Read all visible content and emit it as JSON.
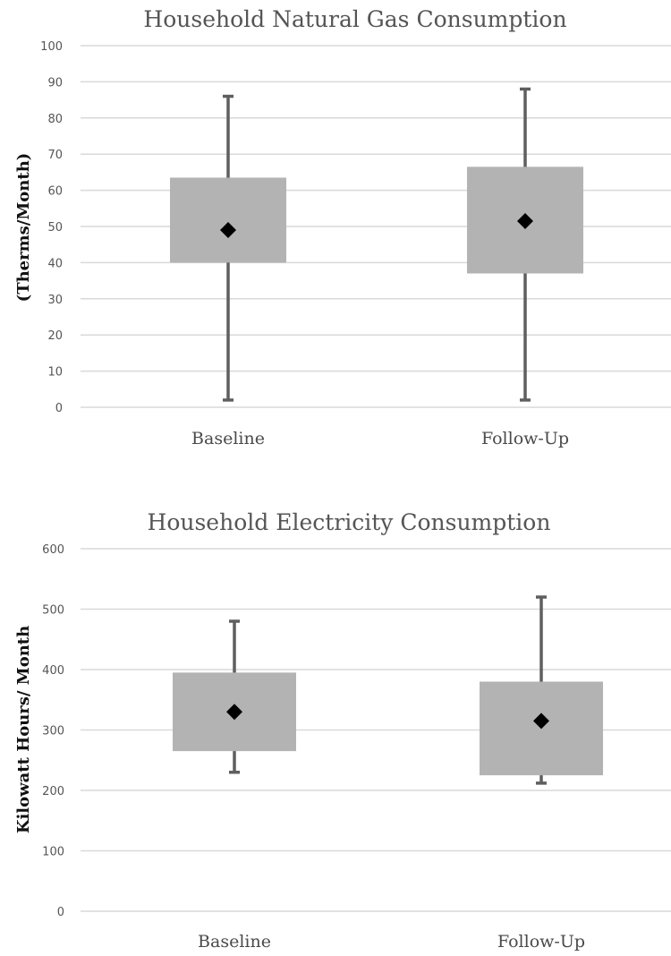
{
  "chart_data": [
    {
      "type": "box",
      "title": "Household Natural Gas Consumption",
      "ylabel": "(Therms/Month)",
      "ylim": [
        0,
        100
      ],
      "yticks": [
        0,
        10,
        20,
        30,
        40,
        50,
        60,
        70,
        80,
        90,
        100
      ],
      "grid": true,
      "categories": [
        "Baseline",
        "Follow-Up"
      ],
      "boxes": [
        {
          "category": "Baseline",
          "min": 2,
          "q1": 40,
          "q3": 63.5,
          "max": 86,
          "mean": 49
        },
        {
          "category": "Follow-Up",
          "min": 2,
          "q1": 37,
          "q3": 66.5,
          "max": 88,
          "mean": 51.5
        }
      ],
      "box_color": "#b3b3b3",
      "whisker_color": "#5f5f5f",
      "mean_marker_color": "#000000"
    },
    {
      "type": "box",
      "title": "Household Electricity Consumption",
      "ylabel": "Kilowatt Hours/ Month",
      "ylim": [
        0,
        600
      ],
      "yticks": [
        0,
        100,
        200,
        300,
        400,
        500,
        600
      ],
      "grid": true,
      "categories": [
        "Baseline",
        "Follow-Up"
      ],
      "boxes": [
        {
          "category": "Baseline",
          "min": 230,
          "q1": 265,
          "q3": 395,
          "max": 480,
          "mean": 330
        },
        {
          "category": "Follow-Up",
          "min": 212,
          "q1": 225,
          "q3": 380,
          "max": 520,
          "mean": 315
        }
      ],
      "box_color": "#b3b3b3",
      "whisker_color": "#5f5f5f",
      "mean_marker_color": "#000000"
    }
  ]
}
